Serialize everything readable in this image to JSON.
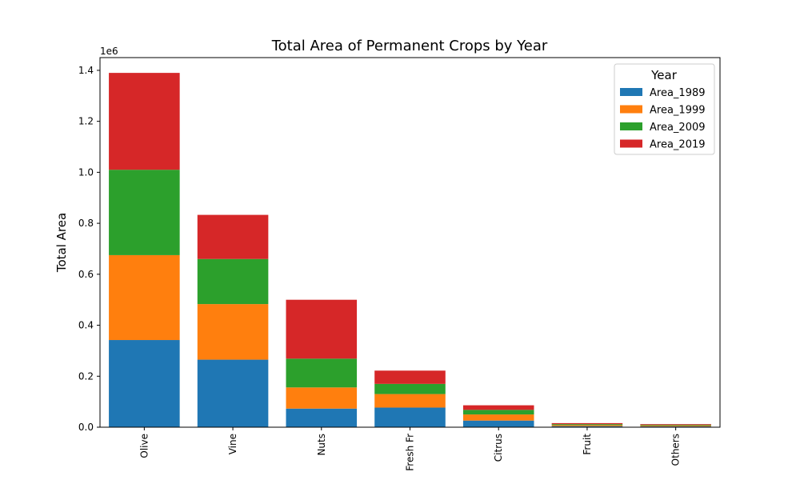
{
  "chart_data": {
    "type": "bar",
    "stacked": true,
    "title": "Total Area of Permanent Crops by Year",
    "xlabel": "",
    "ylabel": "Total Area",
    "y_offset_label": "1e6",
    "ylim": [
      0,
      1.45
    ],
    "y_unit_multiplier": 1000000,
    "yticks": [
      "0.0",
      "0.2",
      "0.4",
      "0.6",
      "0.8",
      "1.0",
      "1.2",
      "1.4"
    ],
    "categories": [
      "Olive",
      "Vine",
      "Nuts",
      "Fresh Fr",
      "Citrus",
      "Fruit",
      "Others"
    ],
    "legend": {
      "title": "Year",
      "placement": "top-right"
    },
    "series": [
      {
        "name": "Area_1989",
        "color": "#1f77b4",
        "values": [
          0.342,
          0.265,
          0.073,
          0.077,
          0.026,
          0.004,
          0.003
        ]
      },
      {
        "name": "Area_1999",
        "color": "#ff7f0e",
        "values": [
          0.333,
          0.218,
          0.083,
          0.053,
          0.024,
          0.004,
          0.003
        ]
      },
      {
        "name": "Area_2009",
        "color": "#2ca02c",
        "values": [
          0.335,
          0.177,
          0.113,
          0.04,
          0.018,
          0.004,
          0.003
        ]
      },
      {
        "name": "Area_2019",
        "color": "#d62728",
        "values": [
          0.38,
          0.173,
          0.231,
          0.052,
          0.018,
          0.004,
          0.003
        ]
      }
    ]
  }
}
